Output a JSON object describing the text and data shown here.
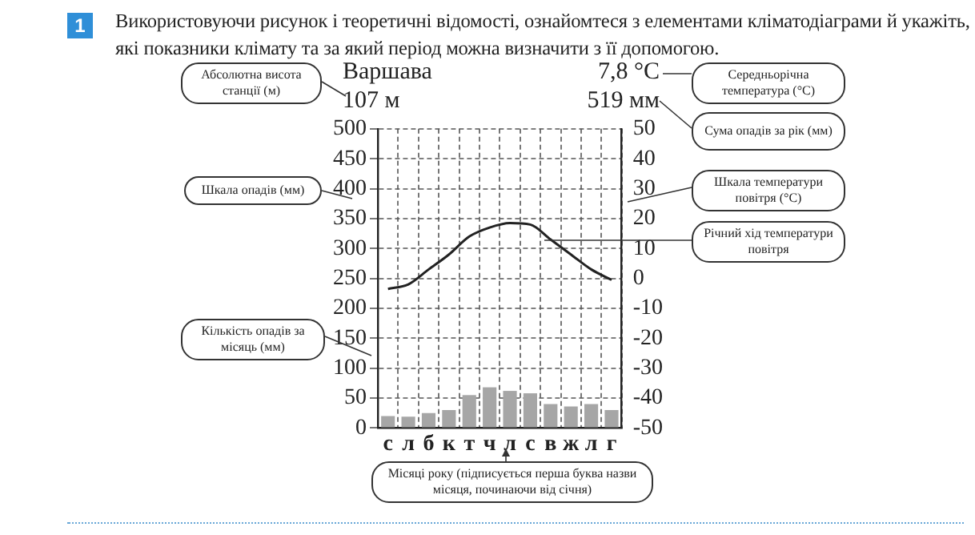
{
  "chart_data": {
    "type": "bar",
    "title": "Використовуючи рисунок і теоретичні відомості, ознайомтеся з елементами кліматодіаграми й укажіть, які показники клімату та за який період можна визначити з її допомогою.",
    "categories": [
      "с",
      "л",
      "б",
      "к",
      "т",
      "ч",
      "л",
      "с",
      "в",
      "ж",
      "л",
      "г"
    ],
    "series": [
      {
        "color": "#a6a6a6",
        "values": [
          20,
          19,
          25,
          30,
          55,
          68,
          62,
          58,
          40,
          36,
          40,
          30
        ]
      },
      {
        "type": "line",
        "axis": "y2",
        "color": "#222222",
        "values": [
          -3.5,
          -2,
          3,
          8,
          14,
          17,
          18.5,
          18,
          13,
          8,
          3,
          -0.5
        ]
      }
    ],
    "ylim": [
      0,
      500
    ],
    "yticks": [
      0,
      50,
      100,
      150,
      200,
      250,
      300,
      350,
      400,
      450,
      500
    ],
    "y2lim": [
      -50,
      50
    ],
    "y2ticks": [
      -50,
      -40,
      -30,
      -20,
      -10,
      0,
      10,
      20,
      30,
      40,
      50
    ],
    "grid": true,
    "legend": false,
    "marker": "none",
    "line_style": "solid",
    "annotations": [
      "1",
      "Варшава",
      "107 м",
      "7,8 °C",
      "519 мм",
      "Абсолютна висота станції (м)",
      "Середньорічна температура (°C)",
      "Сума опадів за рік (мм)",
      "Шкала опадів (мм)",
      "Шкала температури повітря (°C)",
      "Річний хід температури повітря",
      "Кількість опадів за місяць (мм)",
      "Місяці року (підписується перша буква назви місяця, починаючи від січня)"
    ]
  }
}
